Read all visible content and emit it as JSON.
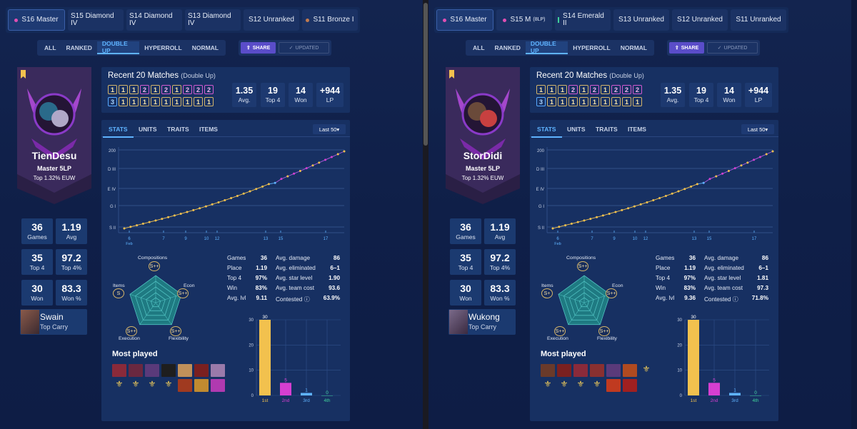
{
  "left": {
    "seasons": [
      {
        "label": "S16 Master",
        "dot": "pink",
        "active": true
      },
      {
        "label": "S15 Diamond IV",
        "dot": "",
        "active": false
      },
      {
        "label": "S14 Diamond IV",
        "dot": "",
        "active": false
      },
      {
        "label": "S13 Diamond IV",
        "dot": "",
        "active": false
      },
      {
        "label": "S12 Unranked",
        "dot": "",
        "active": false
      },
      {
        "label": "S11 Bronze I",
        "dot": "bronze",
        "active": false
      }
    ],
    "modes": [
      "ALL",
      "RANKED",
      "DOUBLE UP",
      "HYPERROLL",
      "NORMAL"
    ],
    "active_mode": "DOUBLE UP",
    "share": "SHARE",
    "updated": "UPDATED",
    "player": {
      "name": "TienDesu",
      "rank": "Master 5LP",
      "top": "Top 1.32% EUW"
    },
    "stats": [
      {
        "v": "36",
        "l": "Games"
      },
      {
        "v": "1.19",
        "l": "Avg"
      },
      {
        "v": "35",
        "l": "Top 4"
      },
      {
        "v": "97.2",
        "l": "Top 4%"
      },
      {
        "v": "30",
        "l": "Won"
      },
      {
        "v": "83.3",
        "l": "Won %"
      }
    ],
    "carry": {
      "name": "Swain",
      "sub": "Top Carry"
    },
    "recent": {
      "title": "Recent 20 Matches",
      "sub": "(Double Up)",
      "row1": [
        "1",
        "1",
        "1",
        "2",
        "1",
        "2",
        "1",
        "2",
        "2",
        "2"
      ],
      "row2": [
        "3",
        "1",
        "1",
        "1",
        "1",
        "1",
        "1",
        "1",
        "1",
        "1"
      ],
      "summary": [
        {
          "v": "1.35",
          "l": "Avg."
        },
        {
          "v": "19",
          "l": "Top 4"
        },
        {
          "v": "14",
          "l": "Won"
        },
        {
          "v": "+944",
          "l": "LP"
        }
      ]
    },
    "tabs": [
      "STATS",
      "UNITS",
      "TRAITS",
      "ITEMS"
    ],
    "last": "Last 50",
    "lp_y_labels": [
      "200",
      "D III",
      "E IV",
      "G I",
      "S II"
    ],
    "lp_x_labels": [
      "6",
      "7",
      "9",
      "10",
      "12",
      "13",
      "15",
      "17"
    ],
    "lp_month": "Feb",
    "radar": {
      "labels": [
        "Compositions",
        "Econ",
        "Flexibility",
        "Execution",
        "Items"
      ],
      "grades": [
        "S++",
        "S++",
        "S++",
        "S++",
        "S"
      ]
    },
    "table": [
      [
        "Games",
        "36",
        "Avg. damage",
        "86"
      ],
      [
        "Place",
        "1.19",
        "Avg. eliminated",
        "6–1"
      ],
      [
        "Top 4",
        "97%",
        "Avg. star level",
        "1.90"
      ],
      [
        "Win",
        "83%",
        "Avg. team cost",
        "93.6"
      ],
      [
        "Avg. lvl",
        "9.11",
        "Contested ⓘ",
        "63.9%"
      ]
    ],
    "most_played": "Most played",
    "champ_colors": [
      "#8a2a3a",
      "#6a2840",
      "#5a3a7a",
      "#1e1e1e",
      "#c0905a",
      "#7a2020",
      "#9a7aaa",
      "#2a2a2a",
      "#2a2a2a",
      "#2a2a2a",
      "#2a2a2a",
      "#a03a20",
      "#c08a30",
      "#b03ab0"
    ],
    "chart_data": {
      "type": "bar",
      "categories": [
        "1st",
        "2nd",
        "3rd",
        "4th"
      ],
      "values": [
        30,
        5,
        1,
        0
      ],
      "ylim": [
        0,
        30
      ],
      "yticks": [
        0,
        10,
        20,
        30
      ],
      "colors": [
        "#f2c14e",
        "#d63fd1",
        "#5fb3ff",
        "#3fd09a"
      ]
    },
    "lp_colors": [
      "#f2c14e",
      "#f2c14e",
      "#f2c14e",
      "#f2c14e",
      "#f2c14e",
      "#f2c14e",
      "#f2c14e",
      "#f2c14e",
      "#f2c14e",
      "#f2c14e",
      "#f2c14e",
      "#f2c14e",
      "#f2c14e",
      "#f2c14e",
      "#f2c14e",
      "#f2c14e",
      "#f2c14e",
      "#f2c14e",
      "#f2c14e",
      "#f2c14e",
      "#f2c14e",
      "#f2c14e",
      "#f2c14e",
      "#f2c14e",
      "#5fb3ff",
      "#d63fd1",
      "#f2c14e",
      "#d63fd1",
      "#f2c14e",
      "#d63fd1",
      "#f2c14e",
      "#f2c14e",
      "#d63fd1",
      "#d63fd1",
      "#f2c14e",
      "#f2c14e"
    ]
  },
  "right": {
    "seasons": [
      {
        "label": "S16 Master",
        "dot": "pink",
        "active": true
      },
      {
        "label": "S15 M",
        "small": "(8LP)",
        "dot": "pink",
        "active": false
      },
      {
        "label": "S14 Emerald II",
        "dot": "green",
        "active": false
      },
      {
        "label": "S13 Unranked",
        "dot": "",
        "active": false
      },
      {
        "label": "S12 Unranked",
        "dot": "",
        "active": false
      },
      {
        "label": "S11 Unranked",
        "dot": "",
        "active": false
      }
    ],
    "modes": [
      "ALL",
      "RANKED",
      "DOUBLE UP",
      "HYPERROLL",
      "NORMAL"
    ],
    "active_mode": "DOUBLE UP",
    "share": "SHARE",
    "updated": "UPDATED",
    "player": {
      "name": "StorDidi",
      "rank": "Master 5LP",
      "top": "Top 1.32% EUW"
    },
    "stats": [
      {
        "v": "36",
        "l": "Games"
      },
      {
        "v": "1.19",
        "l": "Avg"
      },
      {
        "v": "35",
        "l": "Top 4"
      },
      {
        "v": "97.2",
        "l": "Top 4%"
      },
      {
        "v": "30",
        "l": "Won"
      },
      {
        "v": "83.3",
        "l": "Won %"
      }
    ],
    "carry": {
      "name": "Wukong",
      "sub": "Top Carry"
    },
    "recent": {
      "title": "Recent 20 Matches",
      "sub": "(Double Up)",
      "row1": [
        "1",
        "1",
        "1",
        "2",
        "1",
        "2",
        "1",
        "2",
        "2",
        "2"
      ],
      "row2": [
        "3",
        "1",
        "1",
        "1",
        "1",
        "1",
        "1",
        "1",
        "1",
        "1"
      ],
      "summary": [
        {
          "v": "1.35",
          "l": "Avg."
        },
        {
          "v": "19",
          "l": "Top 4"
        },
        {
          "v": "14",
          "l": "Won"
        },
        {
          "v": "+944",
          "l": "LP"
        }
      ]
    },
    "tabs": [
      "STATS",
      "UNITS",
      "TRAITS",
      "ITEMS"
    ],
    "last": "Last 50",
    "lp_y_labels": [
      "200",
      "D III",
      "E IV",
      "G I",
      "S II"
    ],
    "lp_x_labels": [
      "6",
      "7",
      "9",
      "10",
      "12",
      "13",
      "15",
      "17"
    ],
    "lp_month": "Feb",
    "radar": {
      "labels": [
        "Compositions",
        "Econ",
        "Flexibility",
        "Execution",
        "Items"
      ],
      "grades": [
        "S++",
        "S++",
        "S++",
        "S++",
        "S+"
      ]
    },
    "table": [
      [
        "Games",
        "36",
        "Avg. damage",
        "86"
      ],
      [
        "Place",
        "1.19",
        "Avg. eliminated",
        "6–1"
      ],
      [
        "Top 4",
        "97%",
        "Avg. star level",
        "1.81"
      ],
      [
        "Win",
        "83%",
        "Avg. team cost",
        "97.3"
      ],
      [
        "Avg. lvl",
        "9.36",
        "Contested ⓘ",
        "71.8%"
      ]
    ],
    "most_played": "Most played",
    "champ_colors": [
      "#6a3a2a",
      "#7a2020",
      "#8a2a3a",
      "#8a3030",
      "#5a3a7a",
      "#b04a20",
      "#2a2a2a",
      "#2a2a2a",
      "#2a2a2a",
      "#2a2a2a",
      "#2a2a2a",
      "#c03a20",
      "#a02020"
    ],
    "chart_data": {
      "type": "bar",
      "categories": [
        "1st",
        "2nd",
        "3rd",
        "4th"
      ],
      "values": [
        30,
        5,
        1,
        0
      ],
      "ylim": [
        0,
        30
      ],
      "yticks": [
        0,
        10,
        20,
        30
      ],
      "colors": [
        "#f2c14e",
        "#d63fd1",
        "#5fb3ff",
        "#3fd09a"
      ]
    },
    "lp_colors": [
      "#f2c14e",
      "#f2c14e",
      "#f2c14e",
      "#f2c14e",
      "#f2c14e",
      "#f2c14e",
      "#f2c14e",
      "#f2c14e",
      "#f2c14e",
      "#f2c14e",
      "#f2c14e",
      "#f2c14e",
      "#f2c14e",
      "#f2c14e",
      "#f2c14e",
      "#f2c14e",
      "#f2c14e",
      "#f2c14e",
      "#f2c14e",
      "#f2c14e",
      "#f2c14e",
      "#f2c14e",
      "#f2c14e",
      "#f2c14e",
      "#5fb3ff",
      "#d63fd1",
      "#f2c14e",
      "#d63fd1",
      "#f2c14e",
      "#d63fd1",
      "#f2c14e",
      "#f2c14e",
      "#d63fd1",
      "#d63fd1",
      "#f2c14e",
      "#f2c14e"
    ]
  }
}
